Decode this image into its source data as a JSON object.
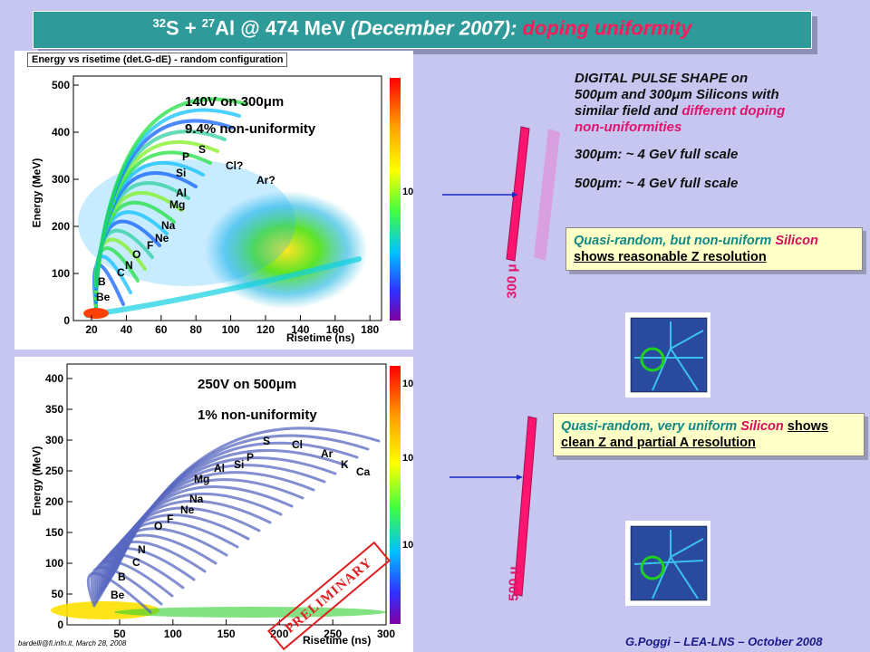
{
  "title": {
    "s_mass": "32",
    "s_sym": "S + ",
    "al_mass": "27",
    "al_sym": "Al @ 474 MeV ",
    "date": "(December 2007): ",
    "topic": "doping uniformity"
  },
  "plot_top": {
    "title": "Energy vs risetime (det.G-dE) - random configuration",
    "ylabel": "Energy (MeV)",
    "xlabel": "Risetime (ns)",
    "x_ticks": [
      "20",
      "40",
      "60",
      "80",
      "100",
      "120",
      "140",
      "160",
      "180"
    ],
    "y_ticks": [
      "0",
      "100",
      "200",
      "300",
      "400",
      "500"
    ],
    "annot1": "140V on 300μm",
    "annot2": "9.4% non-uniformity",
    "elements": [
      "Be",
      "B",
      "C",
      "N",
      "O",
      "F",
      "Ne",
      "Na",
      "Mg",
      "Al",
      "Si",
      "P",
      "S",
      "Cl?",
      "Ar?"
    ],
    "colorbar_ticks": [
      "10"
    ]
  },
  "plot_bottom": {
    "ylabel": "Energy (MeV)",
    "xlabel": "Risetime (ns)",
    "x_ticks": [
      "50",
      "100",
      "150",
      "200",
      "250",
      "300"
    ],
    "y_ticks": [
      "0",
      "50",
      "100",
      "150",
      "200",
      "250",
      "300",
      "350",
      "400"
    ],
    "annot1": "250V on 500μm",
    "annot2": "1% non-uniformity",
    "elements": [
      "Be",
      "B",
      "C",
      "N",
      "O",
      "F",
      "Ne",
      "Na",
      "Mg",
      "Al",
      "Si",
      "P",
      "S",
      "Cl",
      "Ar",
      "K",
      "Ca"
    ],
    "colorbar_ticks": [
      "10",
      "10",
      "10"
    ],
    "stamp": "PRELIMINARY",
    "credit": "bardelli@fi.infn.it, March 28, 2008"
  },
  "header_text": {
    "line1": "DIGITAL PULSE SHAPE on",
    "line2": "500μm and 300μm Silicons with",
    "line3a": "similar field and ",
    "line3b": "different doping",
    "line4": "non-uniformities",
    "fs300": "300μm: ~ 4 GeV full scale",
    "fs500": "500μm: ~ 4 GeV full scale"
  },
  "note_top": {
    "a": "Quasi-random",
    "b": ", but non-uniform",
    "c": "Silicon",
    "d": "shows reasonable Z resolution"
  },
  "note_bottom": {
    "a": "Quasi-random",
    "b": ", very uniform",
    "c": "Silicon",
    "d": "shows clean Z and partial A resolution"
  },
  "det_label_300": "300 μ",
  "det_label_500": "500 μ",
  "footer": "G.Poggi – LEA-LNS – October 2008",
  "colors": {
    "teal": "#2e9a9a",
    "magenta": "#e0146a",
    "background": "#c6c6f0",
    "note": "#ffffc8",
    "arrow": "#1a2acc"
  }
}
